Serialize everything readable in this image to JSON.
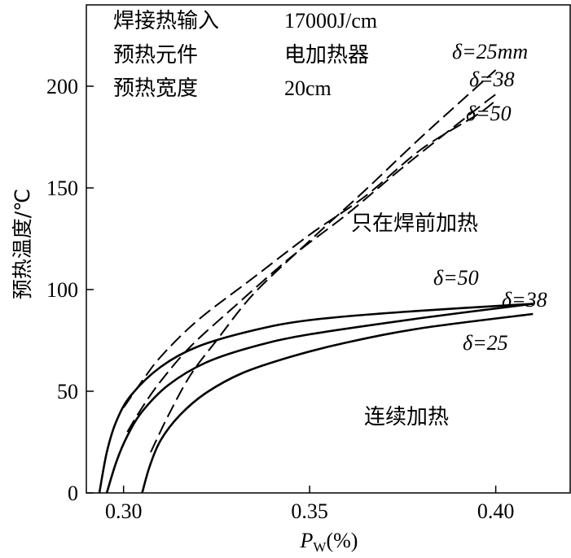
{
  "chart_data": {
    "type": "line",
    "title": "",
    "xlabel": {
      "symbol": "P",
      "subscript": "W",
      "unit": "(%)"
    },
    "ylabel": "预热温度/℃",
    "xlim": [
      0.29,
      0.42
    ],
    "ylim": [
      0,
      240
    ],
    "x_ticks": [
      0.3,
      0.35,
      0.4
    ],
    "x_tick_labels": [
      "0.30",
      "0.35",
      "0.40"
    ],
    "y_ticks": [
      0,
      50,
      100,
      150,
      200
    ],
    "y_tick_labels": [
      "0",
      "50",
      "100",
      "150",
      "200"
    ],
    "grid": false,
    "info": {
      "rows": [
        {
          "label": "焊接热输入",
          "value": "17000J/cm"
        },
        {
          "label": "预热元件",
          "value": "电加热器"
        },
        {
          "label": "预热宽度",
          "value": "20cm"
        }
      ]
    },
    "groups": [
      {
        "label": "只在焊前加热",
        "style": "dashed"
      },
      {
        "label": "连续加热",
        "style": "solid"
      }
    ],
    "series": [
      {
        "group": 0,
        "style": "dashed",
        "label": "δ=25mm",
        "x": [
          0.3073,
          0.312,
          0.318,
          0.325,
          0.335,
          0.35,
          0.365,
          0.38,
          0.4
        ],
        "y": [
          20,
          38,
          58,
          75,
          98,
          124,
          149,
          175,
          208
        ]
      },
      {
        "group": 0,
        "style": "dashed",
        "label": "δ=38",
        "x": [
          0.301,
          0.305,
          0.31,
          0.318,
          0.33,
          0.345,
          0.36,
          0.375,
          0.395,
          0.4
        ],
        "y": [
          30,
          42,
          55,
          72,
          92,
          116,
          137,
          160,
          189,
          196
        ]
      },
      {
        "group": 0,
        "style": "dashed",
        "label": "δ=50",
        "x": [
          0.3,
          0.305,
          0.31,
          0.32,
          0.335,
          0.35,
          0.365,
          0.38,
          0.395,
          0.4
        ],
        "y": [
          42,
          55,
          67,
          85,
          106,
          127,
          146,
          169,
          186,
          193
        ]
      },
      {
        "group": 1,
        "style": "solid",
        "label": "δ=50",
        "x": [
          0.2935,
          0.2955,
          0.298,
          0.302,
          0.31,
          0.32,
          0.335,
          0.35,
          0.375,
          0.41
        ],
        "y": [
          0,
          20,
          35,
          48,
          62,
          72,
          80,
          85,
          89,
          93
        ]
      },
      {
        "group": 1,
        "style": "solid",
        "label": "δ=38",
        "x": [
          0.2955,
          0.298,
          0.301,
          0.305,
          0.312,
          0.322,
          0.335,
          0.35,
          0.38,
          0.41
        ],
        "y": [
          0,
          15,
          28,
          40,
          53,
          64,
          72,
          78,
          86,
          93
        ]
      },
      {
        "group": 1,
        "style": "solid",
        "label": "δ=25",
        "x": [
          0.305,
          0.307,
          0.31,
          0.315,
          0.322,
          0.332,
          0.345,
          0.36,
          0.38,
          0.41
        ],
        "y": [
          0,
          13,
          26,
          38,
          49,
          59,
          67,
          74,
          81,
          88
        ]
      }
    ]
  }
}
